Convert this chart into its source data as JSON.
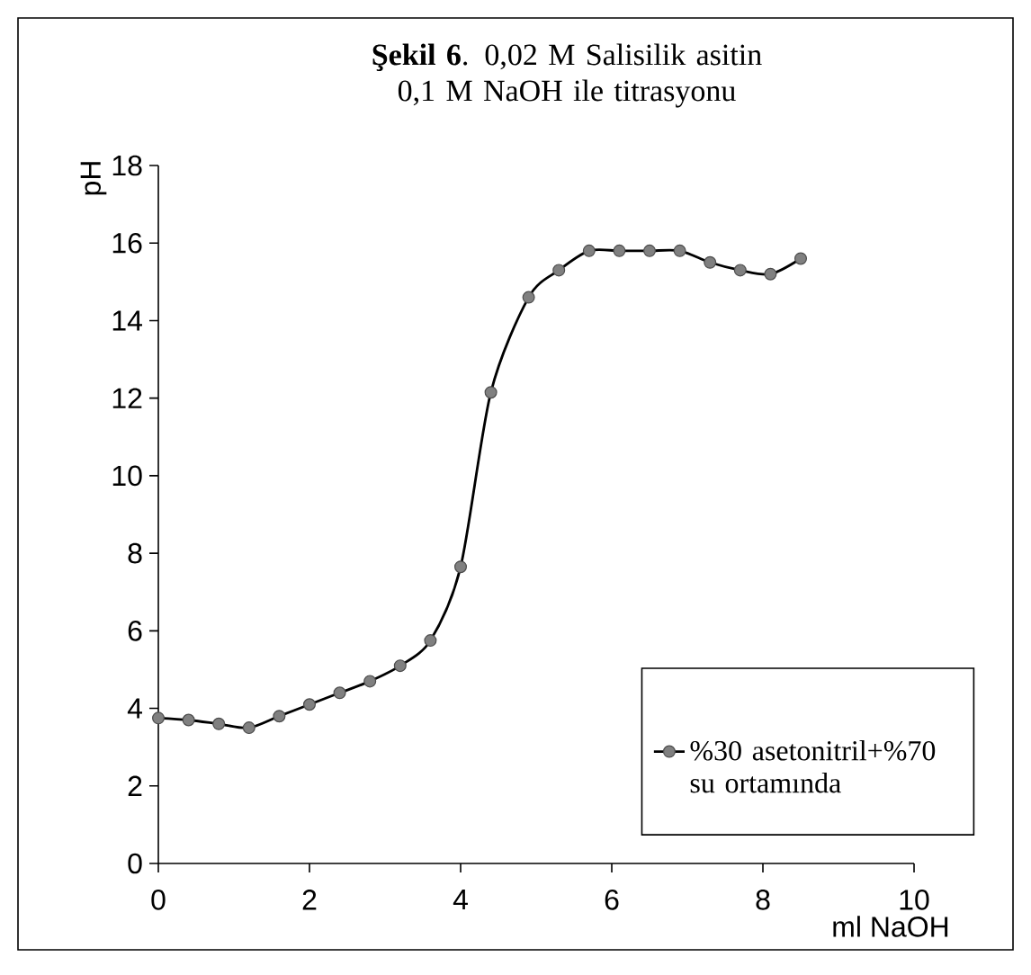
{
  "chart_data": {
    "type": "line",
    "title": "**Şekil 6**. 0,02 M Salisilik asitin 0,1 M NaOH ile titrasyonu",
    "xlabel": "ml NaOH",
    "ylabel": "pH",
    "x": [
      0,
      0.4,
      0.8,
      1.2,
      1.6,
      2.0,
      2.4,
      2.8,
      3.2,
      3.6,
      4.0,
      4.4,
      4.9,
      5.3,
      5.7,
      6.1,
      6.5,
      6.9,
      7.3,
      7.7,
      8.1,
      8.5
    ],
    "series": [
      {
        "name": "%30 asetonitril+%70 su ortamında",
        "color": "#000000",
        "values": [
          3.75,
          3.7,
          3.6,
          3.5,
          3.8,
          4.1,
          4.4,
          4.7,
          5.1,
          5.75,
          7.65,
          12.15,
          14.6,
          15.3,
          15.8,
          15.8,
          15.8,
          15.8,
          15.5,
          15.3,
          15.2,
          15.6
        ]
      }
    ],
    "xlim": [
      0,
      10
    ],
    "ylim": [
      0,
      18
    ],
    "xticks": [
      0,
      2,
      4,
      6,
      8,
      10
    ],
    "yticks": [
      0,
      2,
      4,
      6,
      8,
      10,
      12,
      14,
      16,
      18
    ],
    "grid": false,
    "legend": "bottom right",
    "marker": "circle",
    "line_style": "solid"
  }
}
